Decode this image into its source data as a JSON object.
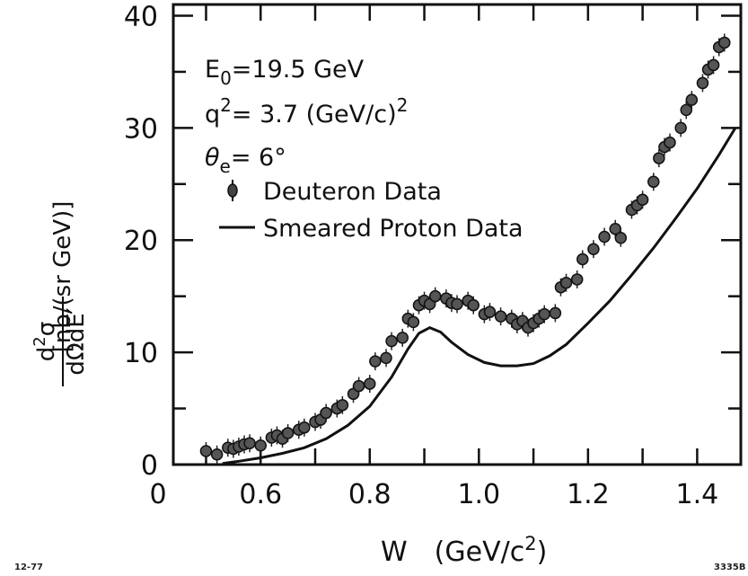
{
  "chart_data": {
    "type": "scatter",
    "annotations": {
      "beam_energy": {
        "symbol": "E",
        "sub": "0",
        "text": "=19.5  GeV"
      },
      "q2": {
        "symbol": "q",
        "sup": "2",
        "text": "=  3.7 (GeV/c)",
        "unit_sup": "2"
      },
      "angle": {
        "symbol": "θ",
        "sub": "e",
        "text": "=  6°"
      }
    },
    "legend": [
      {
        "name": "Deuteron Data",
        "marker": "point-with-error-bar"
      },
      {
        "name": "Smeared Proton Data",
        "marker": "line"
      }
    ],
    "legend_position": "top-left",
    "xlabel": {
      "main": "W",
      "unit": "(GeV/c",
      "unit_sup": "2",
      "unit_close": ")"
    },
    "ylabel": {
      "numerator": "d",
      "numerator_sup": "2",
      "numerator_tail": "σ",
      "denominator": "dΩdE′",
      "unit": "[nb/(sr GeV)]"
    },
    "xlim": [
      0.44,
      1.48
    ],
    "ylim": [
      0,
      41
    ],
    "x_ticks": [
      "0",
      "0.6",
      "0.8",
      "1.0",
      "1.2",
      "1.4"
    ],
    "y_ticks": [
      "0",
      "10",
      "20",
      "30",
      "40"
    ],
    "grid": false,
    "corner_labels": {
      "bottom_left": "12-77",
      "bottom_right": "3335B"
    },
    "series": [
      {
        "name": "Deuteron Data",
        "kind": "points",
        "x": [
          0.5,
          0.52,
          0.54,
          0.55,
          0.56,
          0.57,
          0.58,
          0.6,
          0.62,
          0.63,
          0.64,
          0.65,
          0.67,
          0.68,
          0.7,
          0.71,
          0.72,
          0.74,
          0.75,
          0.77,
          0.78,
          0.8,
          0.81,
          0.83,
          0.84,
          0.86,
          0.87,
          0.88,
          0.89,
          0.9,
          0.91,
          0.92,
          0.94,
          0.95,
          0.96,
          0.98,
          0.99,
          1.01,
          1.02,
          1.04,
          1.06,
          1.07,
          1.08,
          1.09,
          1.1,
          1.11,
          1.12,
          1.14,
          1.15,
          1.16,
          1.18,
          1.19,
          1.21,
          1.23,
          1.25,
          1.26,
          1.28,
          1.29,
          1.3,
          1.32,
          1.33,
          1.34,
          1.35,
          1.37,
          1.38,
          1.39,
          1.41,
          1.42,
          1.43,
          1.44,
          1.45
        ],
        "y": [
          1.2,
          0.9,
          1.5,
          1.4,
          1.6,
          1.8,
          1.9,
          1.7,
          2.4,
          2.6,
          2.3,
          2.8,
          3.1,
          3.3,
          3.8,
          4.0,
          4.6,
          5.0,
          5.3,
          6.3,
          7.0,
          7.2,
          9.2,
          9.5,
          11.0,
          11.3,
          13.0,
          12.7,
          14.2,
          14.6,
          14.3,
          15.0,
          14.8,
          14.4,
          14.3,
          14.6,
          14.2,
          13.4,
          13.6,
          13.2,
          13.0,
          12.5,
          12.8,
          12.2,
          12.6,
          13.0,
          13.4,
          13.5,
          15.8,
          16.2,
          16.5,
          18.3,
          19.2,
          20.3,
          21.0,
          20.2,
          22.7,
          23.1,
          23.6,
          25.2,
          27.3,
          28.3,
          28.7,
          30.0,
          31.6,
          32.5,
          34.0,
          35.2,
          35.6,
          37.2,
          37.6
        ]
      },
      {
        "name": "Smeared Proton Data",
        "kind": "line",
        "x": [
          0.53,
          0.56,
          0.6,
          0.64,
          0.68,
          0.72,
          0.76,
          0.8,
          0.84,
          0.87,
          0.89,
          0.91,
          0.93,
          0.95,
          0.98,
          1.01,
          1.04,
          1.07,
          1.1,
          1.13,
          1.16,
          1.2,
          1.24,
          1.28,
          1.32,
          1.36,
          1.4,
          1.44,
          1.47
        ],
        "y": [
          0.1,
          0.3,
          0.6,
          1.0,
          1.5,
          2.3,
          3.5,
          5.2,
          7.8,
          10.3,
          11.7,
          12.2,
          11.8,
          10.9,
          9.8,
          9.1,
          8.8,
          8.8,
          9.0,
          9.7,
          10.7,
          12.6,
          14.6,
          16.9,
          19.3,
          21.9,
          24.6,
          27.6,
          30.0
        ]
      }
    ]
  }
}
